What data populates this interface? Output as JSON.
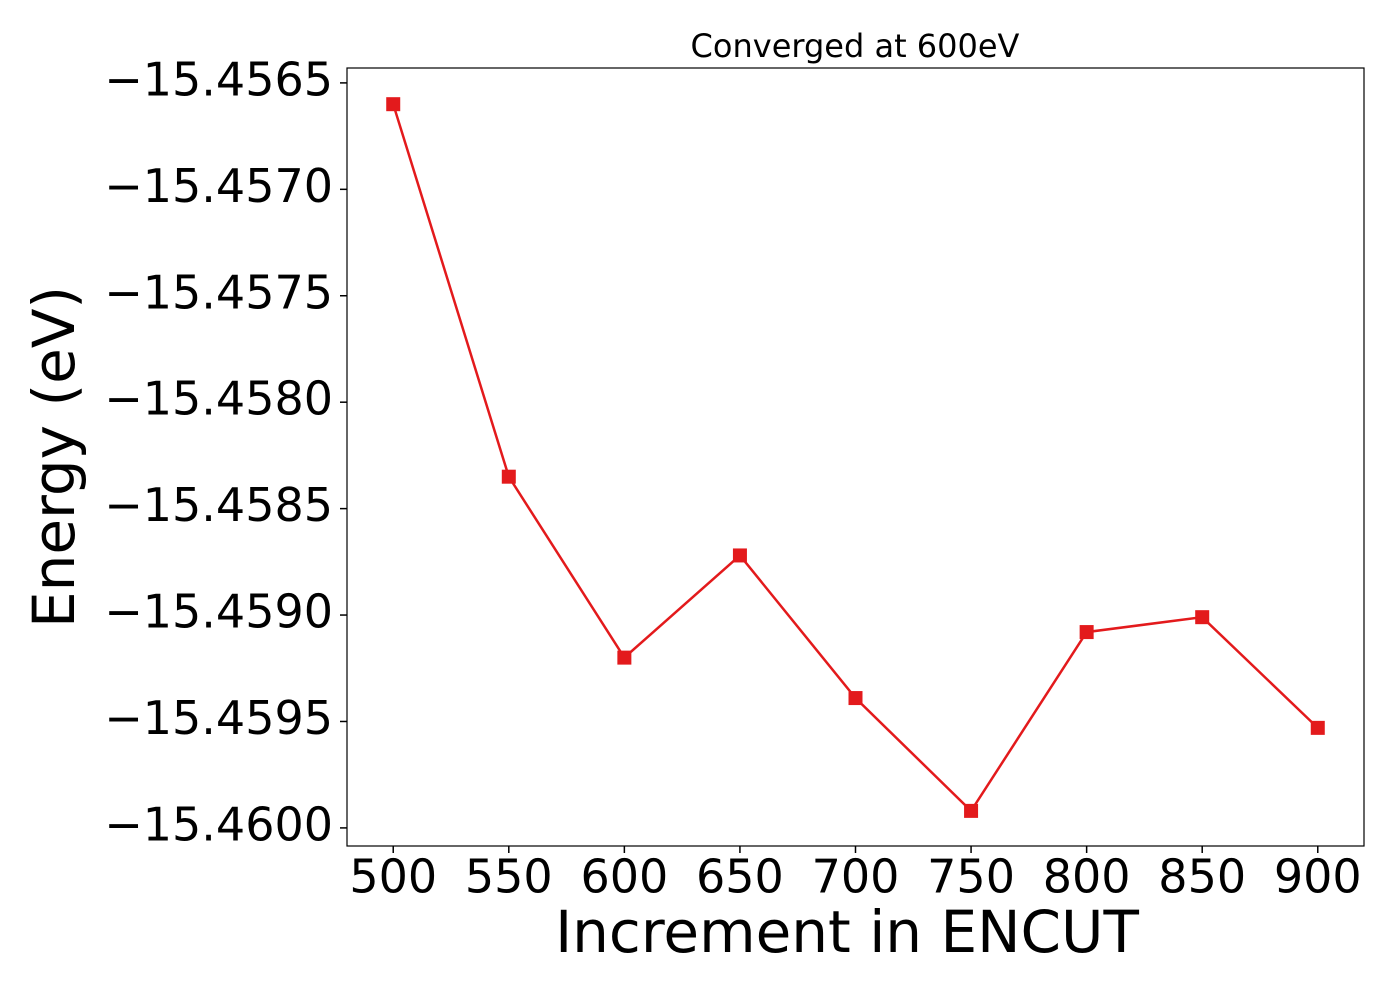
{
  "chart_data": {
    "type": "line",
    "title": "Converged at 600eV",
    "x_label": "Increment in ENCUT",
    "y_label": "Energy (eV)",
    "x": [
      500,
      550,
      600,
      650,
      700,
      750,
      800,
      850,
      900
    ],
    "values": [
      -15.4566,
      -15.45835,
      -15.4592,
      -15.45872,
      -15.45939,
      -15.45992,
      -15.45908,
      -15.45901,
      -15.45953
    ],
    "color": "#e31a1c",
    "marker": "square",
    "xlim": [
      480,
      920
    ],
    "xticks": [
      500,
      550,
      600,
      650,
      700,
      750,
      800,
      850,
      900
    ],
    "ylim": [
      -15.460085,
      -15.45643
    ],
    "yticks": [
      {
        "value": -15.46,
        "label": "−15.4600"
      },
      {
        "value": -15.4595,
        "label": "−15.4595"
      },
      {
        "value": -15.459,
        "label": "−15.4590"
      },
      {
        "value": -15.4585,
        "label": "−15.4585"
      },
      {
        "value": -15.458,
        "label": "−15.4580"
      },
      {
        "value": -15.4575,
        "label": "−15.4575"
      },
      {
        "value": -15.457,
        "label": "−15.4570"
      },
      {
        "value": -15.4565,
        "label": "−15.4565"
      }
    ],
    "grid": false
  }
}
